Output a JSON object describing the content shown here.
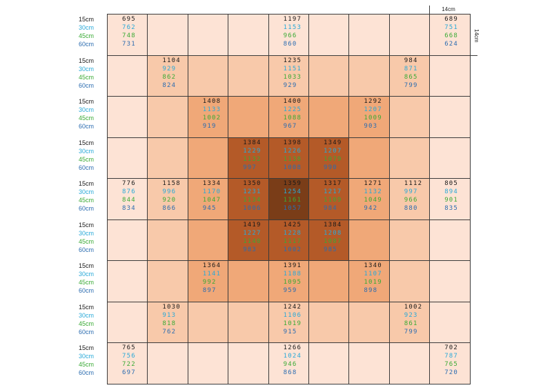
{
  "depth_labels": [
    "15cm",
    "30cm",
    "45cm",
    "60cm"
  ],
  "scale": {
    "top_label": "14cm",
    "side_label": "14cm"
  },
  "colors": {
    "depth_text": [
      "#1a1a1a",
      "#29a9d8",
      "#3aaa35",
      "#2b6cb0"
    ],
    "cell_border": "#3a3a3a",
    "heat": [
      "#fde3d5",
      "#f8c9aa",
      "#f0a878",
      "#e08a50",
      "#b45a28",
      "#7a3d18"
    ]
  },
  "grid": {
    "cells": [
      [
        {
          "heat": 0,
          "v": [
            "695",
            "762",
            "748",
            "731"
          ]
        },
        {
          "heat": 0,
          "v": null
        },
        {
          "heat": 0,
          "v": null
        },
        {
          "heat": 0,
          "v": null
        },
        {
          "heat": 0,
          "v": [
            "1197",
            "1153",
            "966",
            "860"
          ]
        },
        {
          "heat": 0,
          "v": null
        },
        {
          "heat": 0,
          "v": null
        },
        {
          "heat": 0,
          "v": null
        },
        {
          "heat": 0,
          "v": [
            "689",
            "751",
            "668",
            "624"
          ]
        }
      ],
      [
        {
          "heat": 0,
          "v": null
        },
        {
          "heat": 1,
          "v": [
            "1104",
            "929",
            "862",
            "824"
          ]
        },
        {
          "heat": 1,
          "v": null
        },
        {
          "heat": 1,
          "v": null
        },
        {
          "heat": 1,
          "v": [
            "1235",
            "1151",
            "1033",
            "929"
          ]
        },
        {
          "heat": 1,
          "v": null
        },
        {
          "heat": 1,
          "v": null
        },
        {
          "heat": 1,
          "v": [
            "984",
            "871",
            "865",
            "799"
          ]
        },
        {
          "heat": 0,
          "v": null
        }
      ],
      [
        {
          "heat": 0,
          "v": null
        },
        {
          "heat": 1,
          "v": null
        },
        {
          "heat": 2,
          "v": [
            "1408",
            "1133",
            "1002",
            "919"
          ]
        },
        {
          "heat": 2,
          "v": null
        },
        {
          "heat": 2,
          "v": [
            "1400",
            "1225",
            "1088",
            "967"
          ]
        },
        {
          "heat": 2,
          "v": null
        },
        {
          "heat": 2,
          "v": [
            "1292",
            "1207",
            "1009",
            "903"
          ]
        },
        {
          "heat": 1,
          "v": null
        },
        {
          "heat": 0,
          "v": null
        }
      ],
      [
        {
          "heat": 0,
          "v": null
        },
        {
          "heat": 1,
          "v": null
        },
        {
          "heat": 2,
          "v": null
        },
        {
          "heat": 4,
          "v": [
            "1384",
            "1229",
            "1132",
            "997"
          ]
        },
        {
          "heat": 4,
          "v": [
            "1398",
            "1226",
            "1138",
            "1008"
          ]
        },
        {
          "heat": 4,
          "v": [
            "1349",
            "1207",
            "1079",
            "990"
          ]
        },
        {
          "heat": 2,
          "v": null
        },
        {
          "heat": 1,
          "v": null
        },
        {
          "heat": 0,
          "v": null
        }
      ],
      [
        {
          "heat": 0,
          "v": [
            "776",
            "876",
            "844",
            "834"
          ]
        },
        {
          "heat": 1,
          "v": [
            "1158",
            "996",
            "920",
            "866"
          ]
        },
        {
          "heat": 2,
          "v": [
            "1334",
            "1170",
            "1047",
            "945"
          ]
        },
        {
          "heat": 4,
          "v": [
            "1350",
            "1231",
            "1134",
            "1006"
          ]
        },
        {
          "heat": 5,
          "v": [
            "1359",
            "1254",
            "1161",
            "1057"
          ]
        },
        {
          "heat": 4,
          "v": [
            "1317",
            "1217",
            "1109",
            "984"
          ]
        },
        {
          "heat": 2,
          "v": [
            "1271",
            "1132",
            "1049",
            "942"
          ]
        },
        {
          "heat": 1,
          "v": [
            "1112",
            "997",
            "966",
            "880"
          ]
        },
        {
          "heat": 0,
          "v": [
            "805",
            "894",
            "901",
            "835"
          ]
        }
      ],
      [
        {
          "heat": 0,
          "v": null
        },
        {
          "heat": 1,
          "v": null
        },
        {
          "heat": 2,
          "v": null
        },
        {
          "heat": 4,
          "v": [
            "1419",
            "1227",
            "1140",
            "983"
          ]
        },
        {
          "heat": 4,
          "v": [
            "1425",
            "1228",
            "1117",
            "1002"
          ]
        },
        {
          "heat": 4,
          "v": [
            "1384",
            "1208",
            "1087",
            "985"
          ]
        },
        {
          "heat": 2,
          "v": null
        },
        {
          "heat": 1,
          "v": null
        },
        {
          "heat": 0,
          "v": null
        }
      ],
      [
        {
          "heat": 0,
          "v": null
        },
        {
          "heat": 1,
          "v": null
        },
        {
          "heat": 2,
          "v": [
            "1364",
            "1141",
            "992",
            "897"
          ]
        },
        {
          "heat": 2,
          "v": null
        },
        {
          "heat": 2,
          "v": [
            "1391",
            "1188",
            "1095",
            "959"
          ]
        },
        {
          "heat": 2,
          "v": null
        },
        {
          "heat": 2,
          "v": [
            "1340",
            "1107",
            "1019",
            "898"
          ]
        },
        {
          "heat": 1,
          "v": null
        },
        {
          "heat": 0,
          "v": null
        }
      ],
      [
        {
          "heat": 0,
          "v": null
        },
        {
          "heat": 1,
          "v": [
            "1030",
            "913",
            "818",
            "762"
          ]
        },
        {
          "heat": 1,
          "v": null
        },
        {
          "heat": 1,
          "v": null
        },
        {
          "heat": 1,
          "v": [
            "1242",
            "1106",
            "1019",
            "915"
          ]
        },
        {
          "heat": 1,
          "v": null
        },
        {
          "heat": 1,
          "v": null
        },
        {
          "heat": 1,
          "v": [
            "1002",
            "923",
            "861",
            "799"
          ]
        },
        {
          "heat": 0,
          "v": null
        }
      ],
      [
        {
          "heat": 0,
          "v": [
            "765",
            "756",
            "722",
            "697"
          ]
        },
        {
          "heat": 0,
          "v": null
        },
        {
          "heat": 0,
          "v": null
        },
        {
          "heat": 0,
          "v": null
        },
        {
          "heat": 0,
          "v": [
            "1266",
            "1024",
            "946",
            "868"
          ]
        },
        {
          "heat": 0,
          "v": null
        },
        {
          "heat": 0,
          "v": null
        },
        {
          "heat": 0,
          "v": null
        },
        {
          "heat": 0,
          "v": [
            "702",
            "787",
            "765",
            "720"
          ]
        }
      ]
    ]
  }
}
